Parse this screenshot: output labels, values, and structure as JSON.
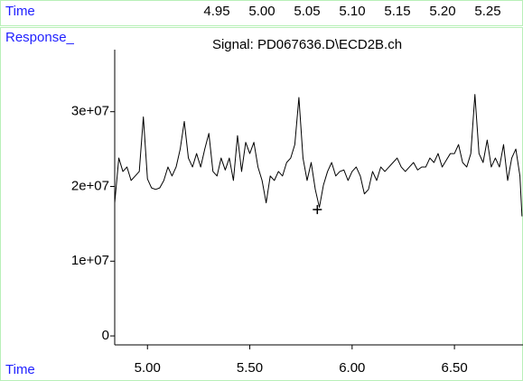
{
  "chart_data": {
    "type": "line",
    "top_axis_label": "Time",
    "y_axis_label": "Response_",
    "title": "Signal: PD067636.D\\ECD2B.ch",
    "x_axis_label": "Time",
    "xlim": [
      4.84,
      6.835
    ],
    "xticks": [
      {
        "value": 5,
        "label": "5.00"
      },
      {
        "value": 5.5,
        "label": "5.50"
      },
      {
        "value": 6,
        "label": "6.00"
      },
      {
        "value": 6.5,
        "label": "6.50"
      }
    ],
    "x2lim": [
      4.837,
      5.289
    ],
    "x2ticks": [
      4.95,
      {
        "value": 5,
        "label": "5.00"
      },
      5.05,
      {
        "value": 5.1,
        "label": "5.10"
      },
      5.15,
      {
        "value": 5.2,
        "label": "5.20"
      },
      5.25
    ],
    "ylim": [
      -1200000,
      38300000
    ],
    "yticks": [
      0,
      {
        "value": 10000000,
        "label": "1e+07"
      },
      {
        "value": 20000000,
        "label": "2e+07"
      },
      {
        "value": 30000000,
        "label": "3e+07"
      }
    ],
    "color": "#000000",
    "x": [
      4.84,
      4.86,
      4.88,
      4.9,
      4.92,
      4.94,
      4.96,
      4.98,
      5.0,
      5.02,
      5.04,
      5.06,
      5.08,
      5.1,
      5.12,
      5.14,
      5.16,
      5.18,
      5.2,
      5.22,
      5.24,
      5.26,
      5.28,
      5.3,
      5.32,
      5.34,
      5.36,
      5.38,
      5.4,
      5.42,
      5.44,
      5.46,
      5.48,
      5.5,
      5.52,
      5.54,
      5.56,
      5.58,
      5.6,
      5.62,
      5.64,
      5.66,
      5.68,
      5.7,
      5.72,
      5.74,
      5.76,
      5.78,
      5.8,
      5.82,
      5.84,
      5.86,
      5.88,
      5.9,
      5.92,
      5.94,
      5.96,
      5.98,
      6.0,
      6.02,
      6.04,
      6.06,
      6.08,
      6.1,
      6.12,
      6.14,
      6.16,
      6.18,
      6.2,
      6.22,
      6.24,
      6.26,
      6.28,
      6.3,
      6.32,
      6.34,
      6.36,
      6.38,
      6.4,
      6.42,
      6.44,
      6.46,
      6.48,
      6.5,
      6.52,
      6.54,
      6.56,
      6.58,
      6.6,
      6.62,
      6.64,
      6.66,
      6.68,
      6.7,
      6.72,
      6.74,
      6.76,
      6.78,
      6.8,
      6.82,
      6.83
    ],
    "values": [
      17800000,
      23800000,
      22000000,
      22600000,
      20800000,
      21400000,
      22000000,
      29300000,
      21000000,
      19800000,
      19600000,
      19800000,
      20800000,
      22600000,
      21400000,
      22600000,
      25000000,
      28700000,
      23800000,
      22600000,
      24400000,
      22600000,
      25000000,
      27100000,
      22000000,
      21400000,
      23800000,
      22200000,
      23800000,
      20800000,
      26800000,
      22000000,
      25900000,
      24400000,
      25900000,
      22600000,
      20800000,
      17800000,
      21400000,
      20800000,
      22000000,
      21400000,
      23200000,
      23800000,
      25600000,
      31900000,
      23800000,
      20800000,
      23200000,
      19600000,
      17200000,
      20200000,
      22000000,
      23200000,
      21400000,
      22000000,
      22200000,
      20800000,
      22000000,
      22600000,
      21400000,
      19000000,
      19600000,
      22000000,
      20800000,
      22600000,
      22000000,
      22600000,
      23200000,
      23800000,
      22600000,
      22000000,
      22600000,
      23200000,
      22200000,
      22600000,
      22600000,
      23800000,
      23200000,
      24400000,
      22600000,
      23500000,
      24400000,
      24400000,
      25600000,
      23200000,
      22600000,
      24400000,
      32300000,
      24400000,
      23200000,
      26200000,
      22600000,
      23800000,
      22600000,
      25600000,
      20800000,
      23800000,
      25000000,
      21400000,
      16000000
    ],
    "cursor": {
      "x": 5.83,
      "y": 16900000
    }
  }
}
